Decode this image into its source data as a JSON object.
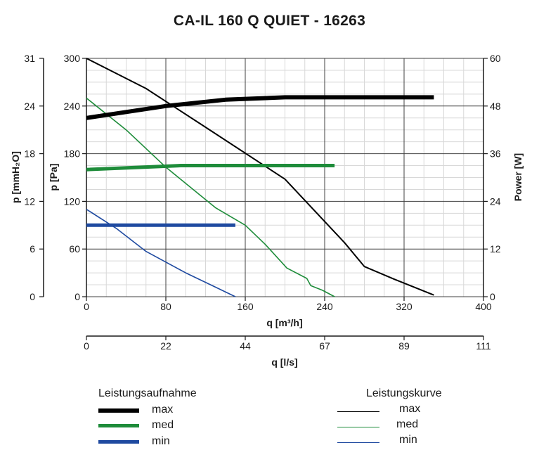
{
  "chart_data": {
    "type": "line",
    "title": "CA-IL 160 Q QUIET - 16263",
    "x_axis": {
      "label": "q [m³/h]",
      "range": [
        0,
        400
      ],
      "ticks": [
        "0",
        "80",
        "160",
        "240",
        "320",
        "400"
      ]
    },
    "x_axis_secondary": {
      "label": "q [l/s]",
      "ticks": [
        "0",
        "22",
        "44",
        "67",
        "89",
        "111"
      ]
    },
    "y_axis_left_outer": {
      "label": "p [mmH₂O]",
      "ticks": [
        "0",
        "6",
        "12",
        "18",
        "24",
        "31"
      ]
    },
    "y_axis_left": {
      "label": "p [Pa]",
      "range": [
        0,
        300
      ],
      "ticks": [
        "0",
        "60",
        "120",
        "180",
        "240",
        "300"
      ]
    },
    "y_axis_right": {
      "label": "Power [W]",
      "range": [
        0,
        60
      ],
      "ticks": [
        "0",
        "12",
        "24",
        "36",
        "48",
        "60"
      ]
    },
    "grid": true,
    "legends": {
      "power": {
        "heading": "Leistungsaufnahme",
        "entries": [
          "max",
          "med",
          "min"
        ]
      },
      "curve": {
        "heading": "Leistungskurve",
        "entries": [
          "max",
          "med",
          "min"
        ]
      }
    },
    "series": [
      {
        "name": "max",
        "group": "Leistungskurve",
        "axis": "pressure",
        "color": "#000000",
        "points": [
          [
            0,
            300
          ],
          [
            60,
            262
          ],
          [
            118,
            215
          ],
          [
            200,
            148
          ],
          [
            260,
            68
          ],
          [
            280,
            38
          ],
          [
            310,
            22
          ],
          [
            350,
            2
          ]
        ]
      },
      {
        "name": "med",
        "group": "Leistungskurve",
        "axis": "pressure",
        "color": "#1e8c3a",
        "points": [
          [
            0,
            250
          ],
          [
            40,
            210
          ],
          [
            80,
            163
          ],
          [
            130,
            112
          ],
          [
            160,
            90
          ],
          [
            180,
            66
          ],
          [
            202,
            36
          ],
          [
            222,
            23
          ],
          [
            226,
            14
          ],
          [
            238,
            8
          ],
          [
            250,
            0
          ]
        ]
      },
      {
        "name": "min",
        "group": "Leistungskurve",
        "axis": "pressure",
        "color": "#1f4aa0",
        "points": [
          [
            0,
            110
          ],
          [
            30,
            86
          ],
          [
            60,
            57
          ],
          [
            100,
            30
          ],
          [
            130,
            12
          ],
          [
            150,
            0
          ]
        ]
      },
      {
        "name": "max",
        "group": "Leistungsaufnahme",
        "axis": "power",
        "color": "#000000",
        "points": [
          [
            0,
            45
          ],
          [
            40,
            46.5
          ],
          [
            80,
            48
          ],
          [
            140,
            49.6
          ],
          [
            200,
            50.2
          ],
          [
            350,
            50.2
          ]
        ]
      },
      {
        "name": "med",
        "group": "Leistungsaufnahme",
        "axis": "power",
        "color": "#1e8c3a",
        "points": [
          [
            0,
            32
          ],
          [
            95,
            33
          ],
          [
            250,
            33
          ]
        ]
      },
      {
        "name": "min",
        "group": "Leistungsaufnahme",
        "axis": "power",
        "color": "#1f4aa0",
        "points": [
          [
            0,
            18
          ],
          [
            150,
            18
          ]
        ]
      }
    ]
  }
}
